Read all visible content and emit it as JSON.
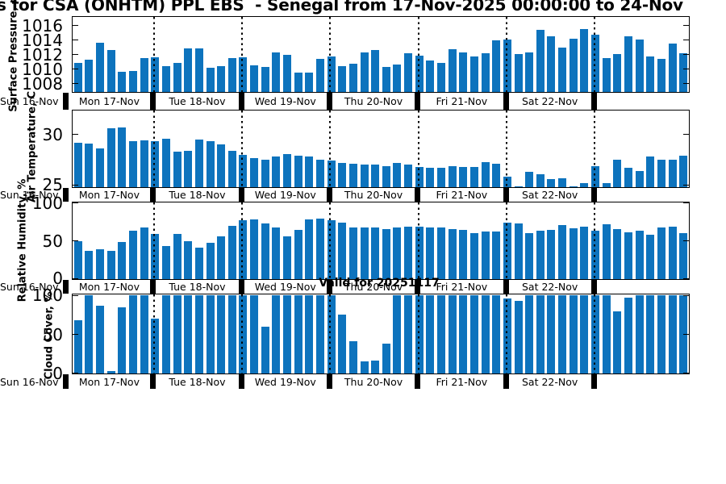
{
  "title": {
    "visible_text": "s for CSA (ONHTM) PPL EBS  - Senegal from 17-Nov-2025 00:00:00 to 24-Nov"
  },
  "annotations": {
    "valid_text": "Valid for 20251117"
  },
  "x_axis": {
    "start_label": "Sun 16-Nov",
    "day_labels": [
      "Mon 17-Nov",
      "Tue 18-Nov",
      "Wed 19-Nov",
      "Thu 20-Nov",
      "Fri 21-Nov",
      "Sat 22-Nov",
      ""
    ],
    "bars_per_day": 8,
    "interval": "3-hourly"
  },
  "colors": {
    "bar": "#0d73bd",
    "axis": "#000000",
    "text": "#000000",
    "background": "#ffffff"
  },
  "chart_data": [
    {
      "type": "bar",
      "name": "surface-pressure",
      "ylabel": "Surface Pressure, mb",
      "yticks": [
        1008,
        1010,
        1012,
        1014,
        1016
      ],
      "ylim": [
        1006.9,
        1017.2
      ],
      "values": [
        1010.9,
        1011.3,
        1013.6,
        1012.6,
        1009.6,
        1009.7,
        1011.5,
        1011.6,
        1010.4,
        1010.9,
        1012.9,
        1012.9,
        1010.2,
        1010.4,
        1011.5,
        1011.6,
        1010.5,
        1010.3,
        1012.3,
        1012.0,
        1009.5,
        1009.5,
        1011.4,
        1011.7,
        1010.4,
        1010.7,
        1012.3,
        1012.6,
        1010.3,
        1010.6,
        1012.2,
        1011.9,
        1011.2,
        1010.9,
        1012.8,
        1012.3,
        1011.7,
        1012.2,
        1014.0,
        1014.1,
        1012.1,
        1012.3,
        1015.4,
        1014.5,
        1013.0,
        1014.2,
        1015.5,
        1014.7,
        1011.5,
        1012.1,
        1014.5,
        1014.1,
        1011.8,
        1011.4,
        1013.5,
        1012.2
      ]
    },
    {
      "type": "bar",
      "name": "air-temperature",
      "ylabel": "Air Temperature, C",
      "yticks": [
        25,
        30
      ],
      "ylim": [
        24.8,
        32.4
      ],
      "values": [
        29.2,
        29.1,
        28.6,
        30.6,
        30.7,
        29.3,
        29.4,
        29.3,
        29.6,
        28.3,
        28.4,
        29.5,
        29.3,
        29.0,
        28.4,
        28.0,
        27.7,
        27.5,
        27.8,
        28.1,
        27.9,
        27.8,
        27.5,
        27.4,
        27.2,
        27.1,
        27.0,
        27.0,
        26.9,
        27.2,
        27.0,
        26.8,
        26.7,
        26.7,
        26.9,
        26.8,
        26.8,
        27.3,
        27.1,
        25.8,
        24.9,
        26.3,
        26.1,
        25.6,
        25.7,
        24.9,
        25.2,
        26.9,
        25.2,
        27.5,
        26.7,
        26.4,
        27.8,
        27.5,
        27.5,
        27.9
      ]
    },
    {
      "type": "bar",
      "name": "relative-humidity",
      "ylabel": "Relative Humidity, %",
      "yticks": [
        0,
        50,
        100
      ],
      "ylim": [
        -0.7,
        100.7
      ],
      "values": [
        50,
        37,
        39,
        37,
        48,
        63,
        68,
        59,
        43,
        59,
        49,
        41,
        47,
        56,
        70,
        77,
        78,
        73,
        68,
        56,
        64,
        78,
        79,
        77,
        74,
        68,
        68,
        68,
        66,
        68,
        69,
        69,
        68,
        68,
        65,
        64,
        60,
        62,
        62,
        74,
        73,
        60,
        63,
        64,
        71,
        67,
        69,
        63,
        72,
        65,
        61,
        63,
        58,
        68,
        69,
        60
      ]
    },
    {
      "type": "bar",
      "name": "cloud-cover",
      "ylabel": "Cloud Cover, %",
      "yticks": [
        0,
        50,
        100
      ],
      "ylim": [
        -0.3,
        101.9
      ],
      "values": [
        68,
        100,
        87,
        3,
        85,
        100,
        100,
        70,
        100,
        100,
        100,
        100,
        100,
        100,
        100,
        100,
        100,
        60,
        100,
        100,
        100,
        100,
        100,
        100,
        75,
        41,
        15,
        16,
        38,
        100,
        100,
        100,
        100,
        100,
        100,
        100,
        100,
        100,
        100,
        96,
        93,
        100,
        100,
        100,
        100,
        100,
        100,
        100,
        100,
        80,
        97,
        100,
        100,
        100,
        100,
        100
      ]
    }
  ]
}
